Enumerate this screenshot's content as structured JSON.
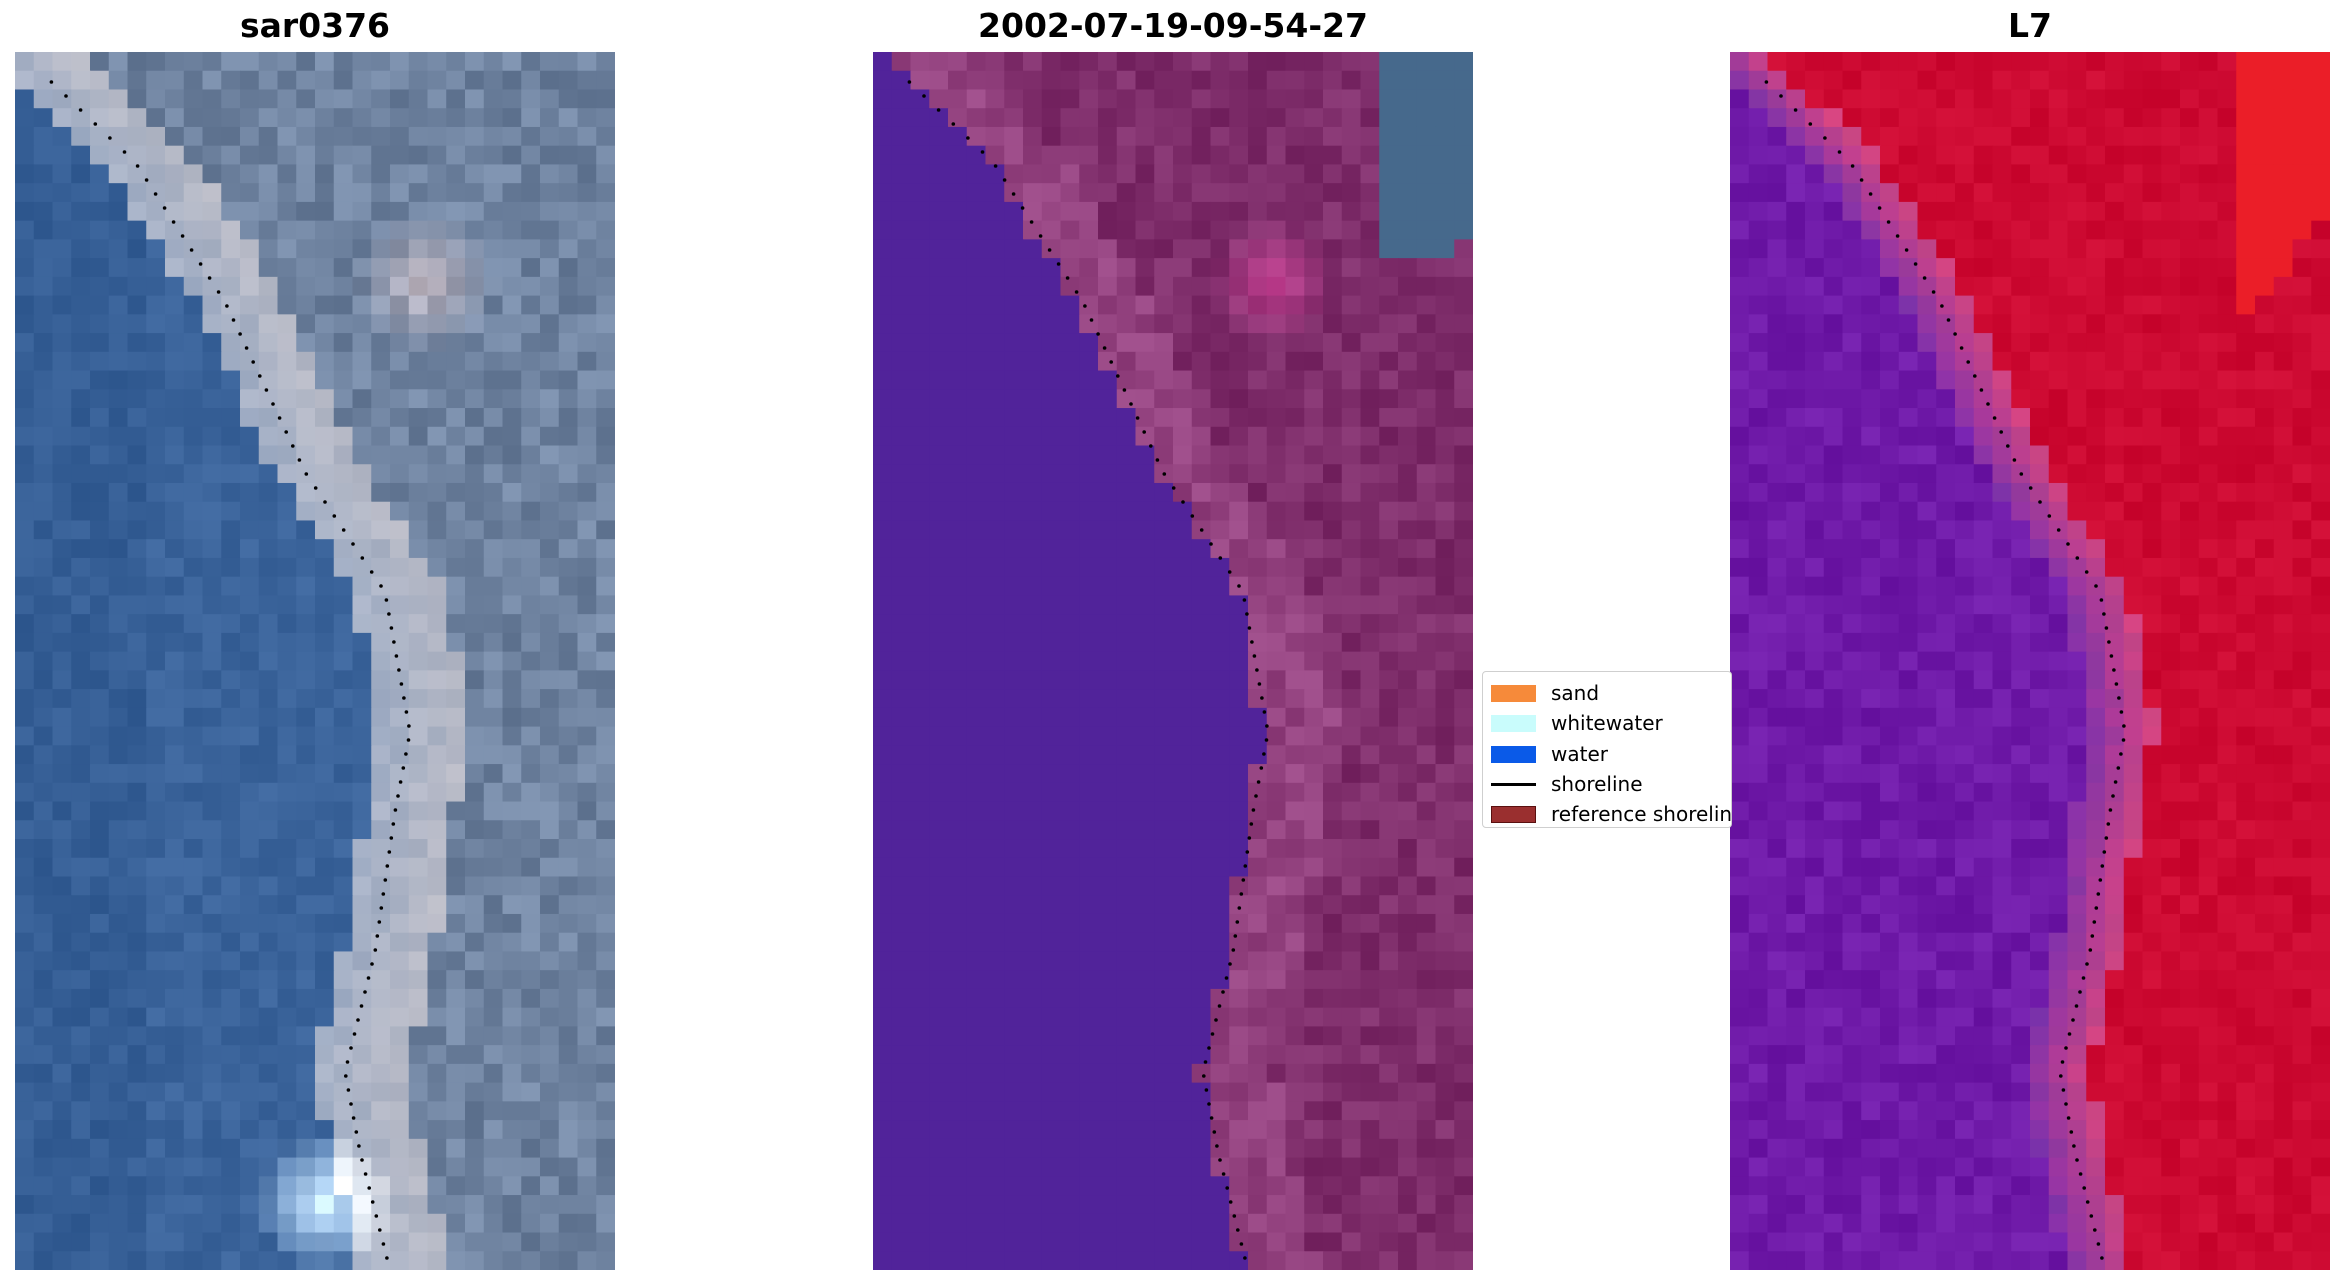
{
  "panels": [
    {
      "title": "sar0376"
    },
    {
      "title": "2002-07-19-09-54-27"
    },
    {
      "title": "L7"
    }
  ],
  "legend": {
    "items": [
      {
        "label": "sand",
        "color": "#f68a3a",
        "kind": "patch"
      },
      {
        "label": "whitewater",
        "color": "#c9fcfc",
        "kind": "patch"
      },
      {
        "label": "water",
        "color": "#0a5ae8",
        "kind": "patch"
      },
      {
        "label": "shoreline",
        "color": "#000000",
        "kind": "line"
      },
      {
        "label": "reference shoreline",
        "color": "#9a2f2f",
        "kind": "patch"
      }
    ]
  },
  "colors": {
    "rgb_water": "#3b6491",
    "rgb_land": "#6f83a0",
    "class_water": "#51239a",
    "class_land": "#7e2d6a",
    "ndwi_water": "#6f1aa8",
    "ndwi_land": "#c30a32",
    "shoreline": "#000000"
  }
}
